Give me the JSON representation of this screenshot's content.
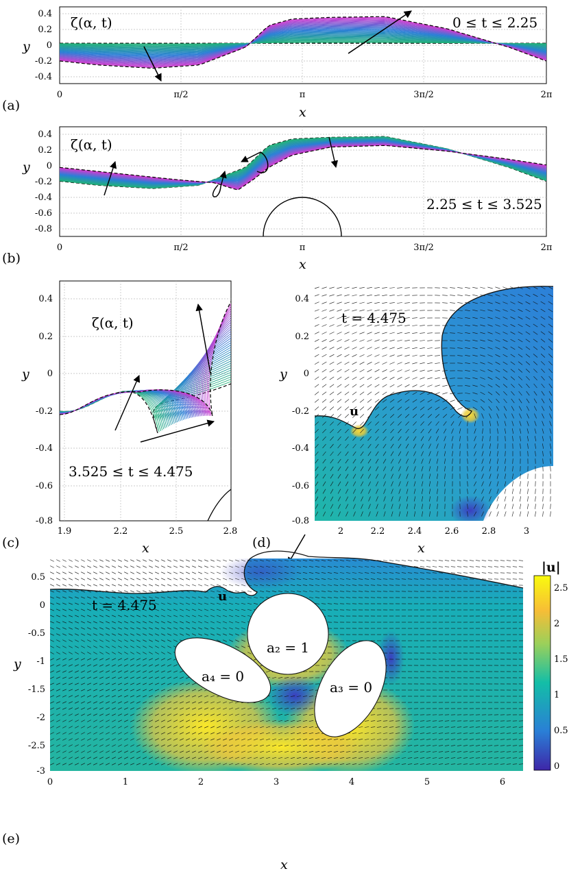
{
  "chart_data": [
    {
      "panel": "(a)",
      "type": "line",
      "xlabel": "x",
      "ylabel": "y",
      "xlim": [
        0,
        6.2832
      ],
      "ylim": [
        -0.5,
        0.45
      ],
      "x_ticks": [
        "0",
        "π/2",
        "π",
        "3π/2",
        "2π"
      ],
      "y_ticks": [
        "0.4",
        "0.2",
        "0",
        "-0.2",
        "-0.4"
      ],
      "grid": true,
      "annotations": [
        "ζ(α, t)",
        "0 ≤ t ≤ 2.25"
      ],
      "series_note": "family of interface profiles colored from green (start) through blue to magenta (end); dashed black initial/final profiles",
      "initial_profile": {
        "x": [
          0,
          1.57,
          2.6,
          3.14,
          3.93,
          4.7,
          5.5,
          6.28
        ],
        "y": [
          0,
          0,
          0,
          0,
          0,
          0,
          0,
          0
        ]
      },
      "final_profile": {
        "x": [
          0,
          0.5,
          1.2,
          1.8,
          2.4,
          2.7,
          3.0,
          3.5,
          4.2,
          5.0,
          5.8,
          6.28
        ],
        "y": [
          -0.22,
          -0.27,
          -0.31,
          -0.27,
          -0.05,
          0.22,
          0.3,
          0.32,
          0.33,
          0.18,
          -0.05,
          -0.22
        ]
      }
    },
    {
      "panel": "(b)",
      "type": "line",
      "xlabel": "x",
      "ylabel": "y",
      "xlim": [
        0,
        6.2832
      ],
      "ylim": [
        -0.9,
        0.45
      ],
      "x_ticks": [
        "0",
        "π/2",
        "π",
        "3π/2",
        "2π"
      ],
      "y_ticks": [
        "0.4",
        "0.2",
        "0",
        "-0.2",
        "-0.4",
        "-0.6",
        "-0.8"
      ],
      "grid": true,
      "annotations": [
        "ζ(α, t)",
        "2.25 ≤ t ≤ 3.525"
      ],
      "circle": {
        "center": [
          3.1416,
          -1.0
        ],
        "radius": 0.5
      },
      "series_note": "interface profiles from green to magenta",
      "final_profile": {
        "x": [
          0,
          0.8,
          1.5,
          2.0,
          2.3,
          2.5,
          2.7,
          3.0,
          3.5,
          4.2,
          5.0,
          5.8,
          6.28
        ],
        "y": [
          -0.05,
          -0.13,
          -0.2,
          -0.24,
          -0.33,
          -0.2,
          -0.05,
          0.1,
          0.2,
          0.22,
          0.15,
          0.05,
          -0.02
        ]
      }
    },
    {
      "panel": "(c)",
      "type": "line",
      "xlabel": "x",
      "ylabel": "y",
      "xlim": [
        1.85,
        2.8
      ],
      "ylim": [
        -0.8,
        0.48
      ],
      "x_ticks": [
        "1.9",
        "2.2",
        "2.5",
        "2.8"
      ],
      "y_ticks": [
        "0.4",
        "0.2",
        "0",
        "-0.2",
        "-0.4",
        "-0.6",
        "-0.8"
      ],
      "grid": true,
      "annotations": [
        "ζ(α, t)",
        "3.525 ≤ t ≤ 4.475"
      ],
      "series_note": "overturning interface profiles colored green to magenta, showing a plunging jet"
    },
    {
      "panel": "(d)",
      "type": "heatmap",
      "xlabel": "x",
      "ylabel": "y",
      "xlim": [
        1.85,
        3.14
      ],
      "ylim": [
        -0.8,
        0.5
      ],
      "x_ticks": [
        "2",
        "2.2",
        "2.4",
        "2.6",
        "2.8",
        "3"
      ],
      "y_ticks": [
        "0.4",
        "0.2",
        "0",
        "-0.2",
        "-0.4",
        "-0.6",
        "-0.8"
      ],
      "annotations": [
        "t = 4.475",
        "u"
      ],
      "field": "|u| with velocity arrows"
    },
    {
      "panel": "(e)",
      "type": "heatmap",
      "xlabel": "x",
      "ylabel": "y",
      "xlim": [
        0,
        6.4
      ],
      "ylim": [
        -3,
        0.75
      ],
      "x_ticks": [
        "0",
        "1",
        "2",
        "3",
        "4",
        "5",
        "6"
      ],
      "y_ticks": [
        "0.5",
        "0",
        "-0.5",
        "-1",
        "-1.5",
        "-2",
        "-2.5",
        "-3"
      ],
      "annotations": [
        "t = 4.475",
        "u",
        "a2 = 1",
        "a4 = 0",
        "a3 = 0"
      ],
      "colorbar": {
        "label": "|u|",
        "ticks": [
          "2.5",
          "2",
          "1.5",
          "1",
          "0.5",
          "0"
        ],
        "range": [
          0,
          2.7
        ]
      },
      "obstacles": [
        {
          "label": "a2 = 1",
          "type": "circle",
          "center": [
            3.14,
            -1.15
          ],
          "radius": 0.5
        },
        {
          "label": "a4 = 0",
          "type": "ellipse",
          "center": [
            2.2,
            -1.6
          ]
        },
        {
          "label": "a3 = 0",
          "type": "ellipse",
          "center": [
            4.1,
            -1.75
          ]
        }
      ]
    }
  ],
  "labels": {
    "panel_a": "(a)",
    "panel_b": "(b)",
    "panel_c": "(c)",
    "panel_d": "(d)",
    "panel_e": "(e)",
    "x": "x",
    "y": "y",
    "zeta": "ζ(α, t)",
    "t_range_a": "0 ≤ t ≤ 2.25",
    "t_range_b": "2.25 ≤ t ≤ 3.525",
    "t_range_c": "3.525 ≤ t ≤ 4.475",
    "t_d": "t = 4.475",
    "t_e": "t = 4.475",
    "u": "u",
    "a2": "a₂ = 1",
    "a4": "a₄ = 0",
    "a3": "a₃ = 0",
    "cbar_label": "|u|"
  },
  "colors": {
    "start": "#22b573",
    "mid": "#2a7fd6",
    "end": "#d83ad0",
    "cmap": [
      "#3e26a8",
      "#2a7fd6",
      "#13bea7",
      "#9bd05a",
      "#f7bd36",
      "#f9fb0e"
    ]
  }
}
